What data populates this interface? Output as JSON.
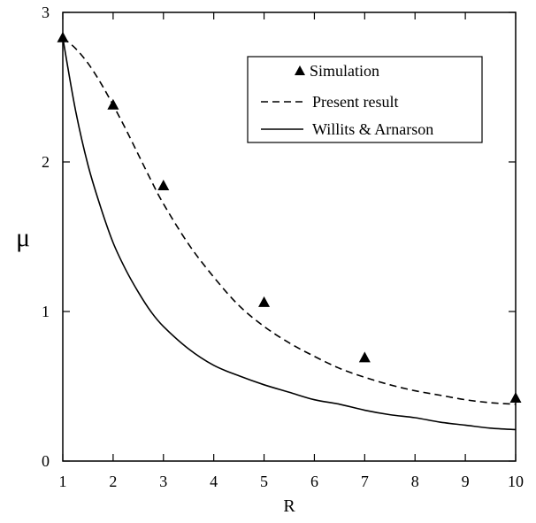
{
  "chart_data": {
    "type": "line",
    "title": "",
    "xlabel": "R",
    "ylabel": "μ",
    "xlim": [
      1,
      10
    ],
    "ylim": [
      0,
      3
    ],
    "x_ticks": [
      "1",
      "2",
      "3",
      "4",
      "5",
      "6",
      "7",
      "8",
      "9",
      "10"
    ],
    "y_ticks": [
      "0",
      "1",
      "2",
      "3"
    ],
    "grid": false,
    "legend_position": "top-right",
    "series": [
      {
        "name": "Simulation",
        "style": "triangle-markers",
        "color": "#000000",
        "x": [
          1,
          2,
          3,
          5,
          7,
          10
        ],
        "y": [
          2.83,
          2.38,
          1.84,
          1.06,
          0.69,
          0.42
        ]
      },
      {
        "name": "Present result",
        "style": "dashed-line",
        "color": "#000000",
        "x": [
          1,
          1.25,
          1.5,
          1.75,
          2,
          2.25,
          2.5,
          2.75,
          3,
          3.5,
          4,
          4.5,
          5,
          5.5,
          6,
          6.5,
          7,
          7.5,
          8,
          8.5,
          9,
          9.5,
          10
        ],
        "y": [
          2.83,
          2.76,
          2.66,
          2.53,
          2.38,
          2.22,
          2.05,
          1.88,
          1.72,
          1.45,
          1.23,
          1.04,
          0.9,
          0.79,
          0.7,
          0.62,
          0.56,
          0.51,
          0.47,
          0.44,
          0.41,
          0.39,
          0.38
        ]
      },
      {
        "name": "Willits & Arnarson",
        "style": "solid-line",
        "color": "#000000",
        "x": [
          1,
          1.25,
          1.5,
          1.75,
          2,
          2.25,
          2.5,
          2.75,
          3,
          3.5,
          4,
          4.5,
          5,
          5.5,
          6,
          6.5,
          7,
          7.5,
          8,
          8.5,
          9,
          9.5,
          10
        ],
        "y": [
          2.83,
          2.35,
          1.98,
          1.7,
          1.46,
          1.28,
          1.13,
          1.0,
          0.9,
          0.75,
          0.64,
          0.57,
          0.51,
          0.46,
          0.41,
          0.38,
          0.34,
          0.31,
          0.29,
          0.26,
          0.24,
          0.22,
          0.21
        ]
      }
    ]
  }
}
